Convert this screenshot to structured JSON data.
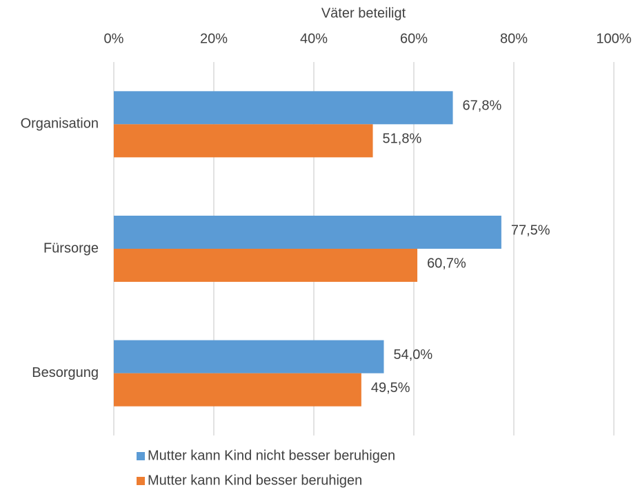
{
  "chart_data": {
    "type": "bar",
    "orientation": "horizontal",
    "xlabel": "Väter beteiligt",
    "categories": [
      "Organisation",
      "Fürsorge",
      "Besorgung"
    ],
    "series": [
      {
        "name": "Mutter kann Kind nicht besser beruhigen",
        "color": "#5b9bd5",
        "values": [
          67.8,
          77.5,
          54.0
        ],
        "value_labels": [
          "67,8%",
          "77,5%",
          "54,0%"
        ]
      },
      {
        "name": "Mutter kann Kind besser beruhigen",
        "color": "#ed7d31",
        "values": [
          51.8,
          60.7,
          49.5
        ],
        "value_labels": [
          "51,8%",
          "60,7%",
          "49,5%"
        ]
      }
    ],
    "xlim": [
      0,
      100
    ],
    "xticks": [
      {
        "value": 0,
        "label": "0%"
      },
      {
        "value": 20,
        "label": "20%"
      },
      {
        "value": 40,
        "label": "40%"
      },
      {
        "value": 60,
        "label": "60%"
      },
      {
        "value": 80,
        "label": "80%"
      },
      {
        "value": 100,
        "label": "100%"
      }
    ],
    "grid": true,
    "legend": "bottom"
  }
}
